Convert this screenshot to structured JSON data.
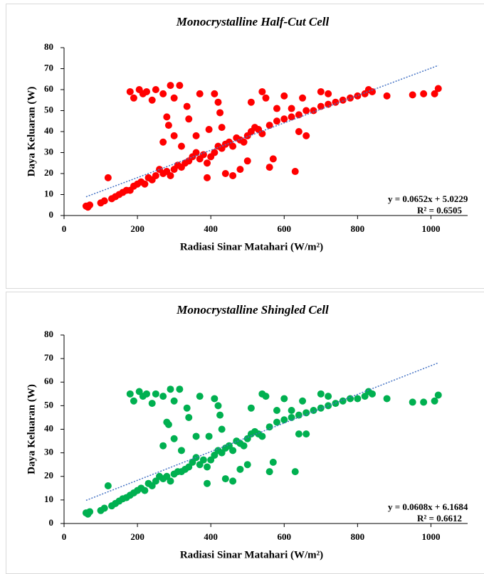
{
  "chart_data": [
    {
      "type": "scatter",
      "title": "Monocrystalline Half-Cut Cell",
      "x_label": "Radiasi Sinar Matahari (W/m²)",
      "y_label": "Daya Keluaran (W)",
      "color": "#ff0000",
      "x": [
        60,
        65,
        70,
        100,
        110,
        120,
        130,
        140,
        150,
        160,
        170,
        180,
        190,
        200,
        210,
        220,
        230,
        240,
        250,
        260,
        270,
        280,
        290,
        300,
        310,
        320,
        330,
        340,
        350,
        360,
        370,
        380,
        390,
        400,
        410,
        420,
        430,
        440,
        450,
        460,
        470,
        480,
        490,
        500,
        510,
        520,
        530,
        540,
        560,
        580,
        600,
        620,
        640,
        660,
        680,
        700,
        720,
        740,
        760,
        780,
        800,
        820,
        840,
        830,
        880,
        950,
        980,
        1010,
        1020,
        180,
        190,
        205,
        215,
        225,
        240,
        250,
        270,
        280,
        285,
        290,
        300,
        315,
        320,
        335,
        340,
        360,
        370,
        390,
        395,
        410,
        420,
        425,
        430,
        440,
        460,
        480,
        500,
        510,
        540,
        550,
        560,
        570,
        580,
        600,
        620,
        630,
        640,
        650,
        660,
        700,
        720,
        270,
        300
      ],
      "values": [
        4.5,
        4,
        5,
        6,
        7,
        18,
        8,
        9,
        10,
        11,
        12,
        12,
        14,
        15,
        16,
        15,
        18,
        17,
        19,
        22,
        20,
        21,
        19,
        22,
        24,
        23,
        25,
        26,
        28,
        30,
        27,
        29,
        25,
        28,
        30,
        33,
        32,
        34,
        35,
        33,
        37,
        36,
        35,
        38,
        40,
        42,
        41,
        39,
        43,
        45,
        46,
        47,
        48,
        50,
        50,
        52,
        53,
        54,
        55,
        56,
        57,
        58,
        59,
        60,
        57,
        57.5,
        58,
        58,
        60.5,
        59,
        56,
        60,
        58,
        59,
        55,
        60,
        58,
        47,
        43,
        62,
        56,
        62,
        33,
        52,
        46,
        38,
        58,
        18,
        41,
        58,
        54,
        49,
        42,
        20,
        19,
        22,
        26,
        54,
        59,
        56,
        23,
        27,
        51,
        57,
        51,
        21,
        40,
        56,
        38,
        59,
        58,
        35,
        38
      ],
      "xlim": [
        0,
        1100
      ],
      "xticks": [
        0,
        200,
        400,
        600,
        800,
        1000
      ],
      "ylim": [
        0,
        80
      ],
      "yticks": [
        0,
        10,
        20,
        30,
        40,
        50,
        60,
        70,
        80
      ],
      "trendline": {
        "slope": 0.0652,
        "intercept": 5.0229,
        "color": "#4472c4",
        "equation": "y = 0.0652x + 5.0229",
        "r2": "R² = 0.6505"
      }
    },
    {
      "type": "scatter",
      "title": "Monocrystalline Shingled Cell",
      "x_label": "Radiasi Sinar Matahari (W/m²)",
      "y_label": "Daya Keluaran (W)",
      "color": "#00b050",
      "x": [
        60,
        65,
        70,
        100,
        110,
        120,
        130,
        140,
        150,
        160,
        170,
        180,
        190,
        200,
        210,
        220,
        230,
        240,
        250,
        260,
        270,
        280,
        290,
        300,
        310,
        320,
        330,
        340,
        350,
        360,
        370,
        380,
        390,
        400,
        410,
        420,
        430,
        440,
        450,
        460,
        470,
        480,
        490,
        500,
        510,
        520,
        530,
        540,
        560,
        580,
        600,
        620,
        640,
        660,
        680,
        700,
        720,
        740,
        760,
        780,
        800,
        820,
        840,
        830,
        880,
        950,
        980,
        1010,
        1020,
        180,
        190,
        205,
        215,
        225,
        240,
        250,
        270,
        280,
        285,
        290,
        300,
        315,
        320,
        335,
        340,
        360,
        370,
        390,
        395,
        410,
        420,
        425,
        430,
        440,
        460,
        480,
        500,
        510,
        540,
        550,
        560,
        570,
        580,
        600,
        620,
        630,
        640,
        650,
        660,
        700,
        720,
        270,
        300
      ],
      "values": [
        4.5,
        4,
        5,
        5.5,
        6.5,
        16,
        7.5,
        8.5,
        9.5,
        10.5,
        11,
        12,
        13,
        14,
        15,
        14,
        17,
        16,
        18,
        20,
        19,
        20,
        18,
        21,
        22,
        22,
        23,
        24,
        26,
        28,
        25,
        27,
        24,
        27,
        29,
        31,
        30,
        32,
        33,
        31,
        35,
        34,
        33,
        36,
        38,
        39,
        38,
        37,
        41,
        43,
        44,
        45,
        46,
        47,
        48,
        49,
        50,
        51,
        52,
        53,
        53,
        54,
        55,
        56,
        53,
        51.5,
        51.5,
        52,
        54.5,
        55,
        52,
        56,
        54,
        55,
        51,
        55,
        54,
        43,
        42,
        57,
        52,
        57,
        31,
        49,
        45,
        37,
        54,
        17,
        37,
        53,
        50,
        46,
        40,
        19,
        18,
        23,
        25,
        49,
        55,
        54,
        22,
        26,
        48,
        53,
        48,
        22,
        38,
        52,
        38,
        55,
        54,
        33,
        36
      ],
      "xlim": [
        0,
        1100
      ],
      "xticks": [
        0,
        200,
        400,
        600,
        800,
        1000
      ],
      "ylim": [
        0,
        80
      ],
      "yticks": [
        0,
        10,
        20,
        30,
        40,
        50,
        60,
        70,
        80
      ],
      "trendline": {
        "slope": 0.0608,
        "intercept": 6.1684,
        "color": "#4472c4",
        "equation": "y = 0.0608x + 6.1684",
        "r2": "R² = 0.6612"
      }
    }
  ]
}
